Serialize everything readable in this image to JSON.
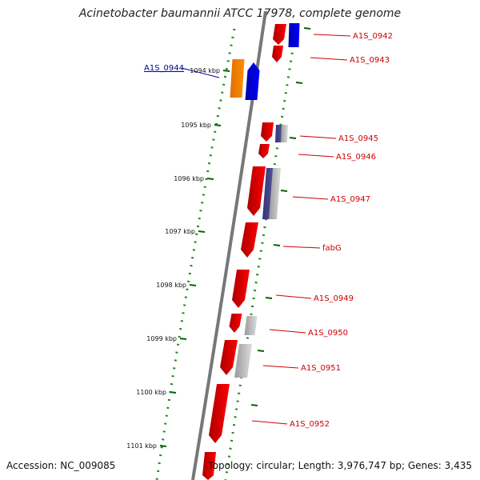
{
  "title": "Acinetobacter baumannii ATCC 17978, complete genome",
  "footer": {
    "accession": "Accession: NC_009085",
    "topology": "Topology: circular; Length: 3,976,747 bp; Genes: 3,435"
  },
  "ticks": [
    "1094 kbp",
    "1095 kbp",
    "1096 kbp",
    "1097 kbp",
    "1098 kbp",
    "1099 kbp",
    "1100 kbp",
    "1101 kbp"
  ],
  "genes": [
    {
      "label": "A1S_0942",
      "color": "#cc0000",
      "highlight": false
    },
    {
      "label": "A1S_0943",
      "color": "#cc0000",
      "highlight": false
    },
    {
      "label": "A1S_0944",
      "color": "#000099",
      "highlight": true
    },
    {
      "label": "A1S_0945",
      "color": "#cc0000",
      "highlight": false
    },
    {
      "label": "A1S_0946",
      "color": "#cc0000",
      "highlight": false
    },
    {
      "label": "A1S_0947",
      "color": "#cc0000",
      "highlight": false
    },
    {
      "label": "fabG",
      "color": "#cc0000",
      "highlight": false
    },
    {
      "label": "A1S_0949",
      "color": "#cc0000",
      "highlight": false
    },
    {
      "label": "A1S_0950",
      "color": "#cc0000",
      "highlight": false
    },
    {
      "label": "A1S_0951",
      "color": "#cc0000",
      "highlight": false
    },
    {
      "label": "A1S_0952",
      "color": "#cc0000",
      "highlight": false
    }
  ],
  "colors": {
    "cds": "#ff0000",
    "highlight_orange": "#ff8c00",
    "highlight_blue": "#0000ff",
    "gc_gray": "#bbbbbb",
    "gc_purple": "#55559a",
    "backbone": "#777777",
    "dots": "#228822",
    "tick": "#006600"
  }
}
